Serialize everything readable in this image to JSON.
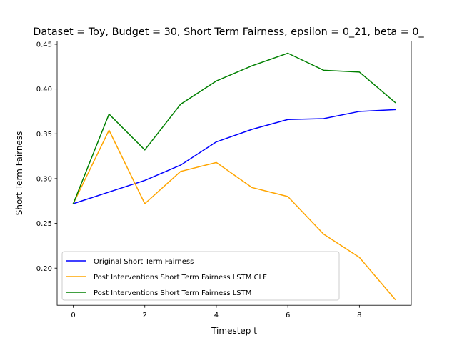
{
  "chart_data": {
    "type": "line",
    "title": "Dataset = Toy, Budget = 30, Short Term Fairness, epsilon = 0_21, beta = 0_",
    "xlabel": "Timestep t",
    "ylabel": "Short Term Fairness",
    "xlim": [
      -0.45,
      9.45
    ],
    "ylim": [
      0.1585,
      0.4535
    ],
    "xticks": [
      0,
      2,
      4,
      6,
      8
    ],
    "xtick_labels": [
      "0",
      "2",
      "4",
      "6",
      "8"
    ],
    "yticks": [
      0.2,
      0.25,
      0.3,
      0.35,
      0.4,
      0.45
    ],
    "ytick_labels": [
      "0.20",
      "0.25",
      "0.30",
      "0.35",
      "0.40",
      "0.45"
    ],
    "grid": false,
    "legend_position": "lower-left",
    "x": [
      0,
      1,
      2,
      3,
      4,
      5,
      6,
      7,
      8,
      9
    ],
    "series": [
      {
        "name": "Original Short Term Fairness",
        "color": "#0000ff",
        "values": [
          0.272,
          0.285,
          0.298,
          0.315,
          0.341,
          0.355,
          0.366,
          0.367,
          0.375,
          0.377
        ]
      },
      {
        "name": "Post Interventions Short Term Fairness LSTM CLF",
        "color": "#ffa500",
        "values": [
          0.272,
          0.354,
          0.272,
          0.308,
          0.318,
          0.29,
          0.28,
          0.238,
          0.212,
          0.165
        ]
      },
      {
        "name": "Post Interventions Short Term Fairness LSTM",
        "color": "#008000",
        "values": [
          0.272,
          0.372,
          0.332,
          0.383,
          0.409,
          0.426,
          0.44,
          0.421,
          0.419,
          0.385
        ]
      }
    ]
  }
}
